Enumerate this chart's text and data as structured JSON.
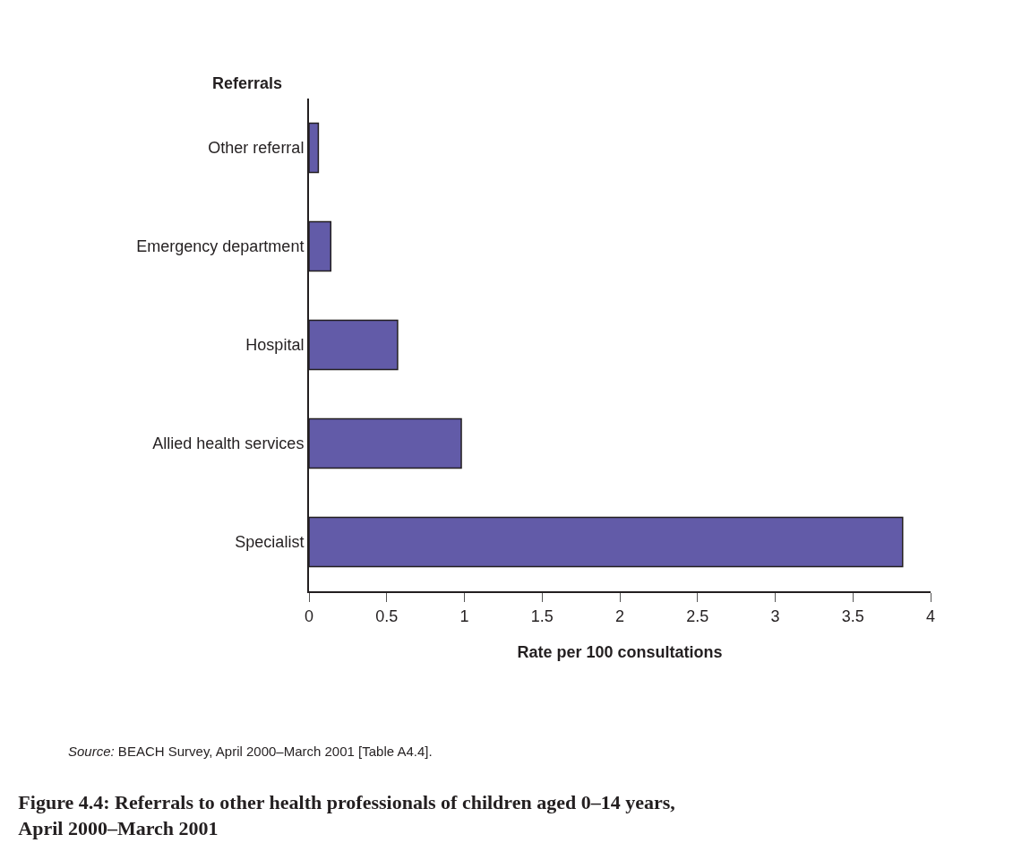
{
  "chart_data": {
    "type": "bar",
    "orientation": "horizontal",
    "title": "Figure 4.4: Referrals to other health professionals of children aged 0–14 years, April 2000–March 2001",
    "ylabel": "Referrals",
    "xlabel": "Rate per 100 consultations",
    "categories": [
      "Other referral",
      "Emergency department",
      "Hospital",
      "Allied health services",
      "Specialist"
    ],
    "values": [
      0.06,
      0.14,
      0.57,
      0.98,
      3.82
    ],
    "color": "#625ba8",
    "xlim": [
      0,
      4
    ],
    "xticks": [
      0,
      0.5,
      1,
      1.5,
      2,
      2.5,
      3,
      3.5,
      4
    ],
    "legend": false,
    "annotations": [
      "Source: BEACH Survey, April 2000–March 2001 [Table A4.4]."
    ]
  }
}
